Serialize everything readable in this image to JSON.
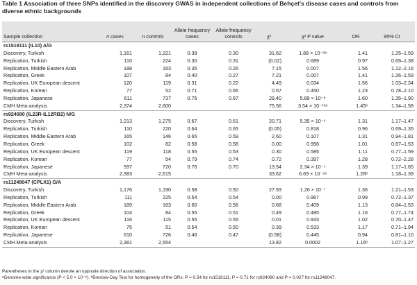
{
  "title": {
    "label": "Table 1",
    "text": "Association of three SNPs identified in the discovery GWAS in independent collections of Behçet's disease cases and controls from diverse ethnic backgrounds"
  },
  "columns": [
    "Sample collection",
    "n cases",
    "n controls",
    "Allele frequency cases",
    "Allele frequency controls",
    "χ²",
    "χ² P value",
    "OR",
    "95% CI"
  ],
  "groups": [
    {
      "snp": "rs1518111 (IL10) A/G",
      "rows": [
        [
          "Discovery, Turkish",
          "1,161",
          "1,221",
          "0.38",
          "0.30",
          "31.62",
          "1.88 × 10⁻⁸ᵃ",
          "1.41",
          "1.25–1.59"
        ],
        [
          "Replication, Turkish",
          "110",
          "224",
          "0.30",
          "0.31",
          "(0.02)",
          "0.689",
          "0.97",
          "0.69–1.38"
        ],
        [
          "Replication, Middle Eastern Arab",
          "188",
          "163",
          "0.35",
          "0.26",
          "7.15",
          "0.007",
          "1.56",
          "1.12–2.16"
        ],
        [
          "Replication, Greek",
          "107",
          "84",
          "0.40",
          "0.27",
          "7.21",
          "0.007",
          "1.41",
          "1.26–1.59"
        ],
        [
          "Replication, UK European descent",
          "120",
          "119",
          "0.31",
          "0.22",
          "4.49",
          "0.034",
          "1.56",
          "1.03–2.34"
        ],
        [
          "Replication, Korean",
          "77",
          "52",
          "0.71",
          "0.66",
          "0.57",
          "0.450",
          "1.23",
          "0.78–2.10"
        ],
        [
          "Replication, Japanese",
          "611",
          "737",
          "0.76",
          "0.67",
          "29.40",
          "5.89 × 10⁻⁸",
          "1.60",
          "1.35–1.90"
        ],
        [
          "CMH Meta-analysis",
          "2,374",
          "2,600",
          "",
          "",
          "75.56",
          "3.54 × 10⁻¹⁸ᵃ",
          "1.45ᵇ",
          "1.34–1.58"
        ]
      ]
    },
    {
      "snp": "rs924080 (IL23R-IL12RB2) N/G",
      "rows": [
        [
          "Discovery, Turkish",
          "1,213",
          "1,275",
          "0.67",
          "0.61",
          "20.71",
          "5.35 × 10⁻⁶",
          "1.31",
          "1.17–1.47"
        ],
        [
          "Replication, Turkish",
          "110",
          "220",
          "0.64",
          "0.65",
          "(0.05)",
          "0.818",
          "0.96",
          "0.69–1.35"
        ],
        [
          "Replication, Middle Eastern Arab",
          "165",
          "146",
          "0.65",
          "0.59",
          "2.60",
          "0.107",
          "1.31",
          "0.94–1.81"
        ],
        [
          "Replication, Greek",
          "102",
          "82",
          "0.58",
          "0.58",
          "0.00",
          "0.956",
          "1.01",
          "0.67–1.53"
        ],
        [
          "Replication, UK European descent",
          "119",
          "118",
          "0.55",
          "0.53",
          "0.30",
          "0.585",
          "1.11",
          "0.77–1.59"
        ],
        [
          "Replication, Korean",
          "77",
          "54",
          "0.79",
          "0.74",
          "0.72",
          "0.397",
          "1.28",
          "0.72–2.28"
        ],
        [
          "Replication, Japanese",
          "597",
          "720",
          "0.76",
          "0.70",
          "13.54",
          "2.34 × 10⁻⁴",
          "1.39",
          "1.17–1.65"
        ],
        [
          "CMH Meta-analysis",
          "2,383",
          "2,615",
          "",
          "",
          "33.62",
          "6.69 × 10⁻⁹ᵃ",
          "1.28ᵇ",
          "1.18–1.39"
        ]
      ]
    },
    {
      "snp": "rs11248047 (CPLX1) G/A",
      "rows": [
        [
          "Discovery, Turkish",
          "1,176",
          "1,190",
          "0.58",
          "0.50",
          "27.93",
          "1.26 × 10⁻⁷",
          "1.36",
          "1.21–1.53"
        ],
        [
          "Replication, Turkish",
          "111",
          "225",
          "0.54",
          "0.54",
          "0.00",
          "0.967",
          "0.99",
          "0.72–1.37"
        ],
        [
          "Replication, Middle Eastern Arab",
          "189",
          "163",
          "0.60",
          "0.56",
          "0.68",
          "0.409",
          "1.13",
          "0.84–1.53"
        ],
        [
          "Replication, Greek",
          "104",
          "84",
          "0.55",
          "0.51",
          "0.49",
          "0.485",
          "1.16",
          "0.77–1.74"
        ],
        [
          "Replication, UK European descent",
          "116",
          "115",
          "0.55",
          "0.55",
          "0.01",
          "0.933",
          "1.02",
          "0.70–1.47"
        ],
        [
          "Replication, Korean",
          "75",
          "51",
          "0.54",
          "0.50",
          "0.39",
          "0.533",
          "1.17",
          "0.71–1.94"
        ],
        [
          "Replication, Japanese",
          "610",
          "726",
          "0.46",
          "0.47",
          "(0.58)",
          "0.445",
          "0.94",
          "0.81–1.10"
        ],
        [
          "CMH Meta-analysis",
          "2,381",
          "2,554",
          "",
          "",
          "13.82",
          "0.0002",
          "1.16ᵇ",
          "1.07–1.27"
        ]
      ]
    }
  ],
  "footnotes": {
    "line1": "Parentheses in the χ² column denote an opposite direction of association.",
    "line2": "ᵃGenome-wide significance (P < 5.0 × 10⁻⁸). ᵇBreslow-Day Test for homogeneity of the ORs: P = 0.54 for rs1518111, P = 0.71 for rs924080 and P = 0.027 for rs11248047."
  }
}
